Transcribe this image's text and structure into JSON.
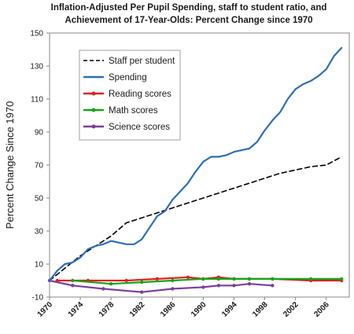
{
  "chart_data": {
    "type": "line",
    "title": "Inflation-Adjusted Per Pupil Spending, staff to student ratio, and",
    "subtitle": "Achievement of 17-Year-Olds:  Percent Change since 1970",
    "xlabel": "",
    "ylabel": "Percent Change Since 1970",
    "xlim": [
      1970,
      2009
    ],
    "ylim": [
      -10,
      150
    ],
    "y_ticks": [
      -10,
      10,
      30,
      50,
      70,
      90,
      110,
      130,
      150
    ],
    "x_ticks": [
      1970,
      1974,
      1978,
      1982,
      1986,
      1990,
      1994,
      1998,
      2002,
      2006
    ],
    "grid": false,
    "legend_position": "top-left",
    "series": [
      {
        "name": "Staff per student",
        "color": "#000000",
        "style": "dashed",
        "points": [
          [
            1970,
            0
          ],
          [
            1974,
            15
          ],
          [
            1978,
            27
          ],
          [
            1980,
            35
          ],
          [
            1982,
            38
          ],
          [
            1984,
            41
          ],
          [
            1986,
            44
          ],
          [
            1988,
            47
          ],
          [
            1990,
            50
          ],
          [
            1992,
            53
          ],
          [
            1994,
            56
          ],
          [
            1996,
            59
          ],
          [
            1998,
            62
          ],
          [
            2000,
            65
          ],
          [
            2002,
            67
          ],
          [
            2004,
            69
          ],
          [
            2006,
            70
          ],
          [
            2008,
            75
          ]
        ]
      },
      {
        "name": "Spending",
        "color": "#2e6eb5",
        "style": "solid",
        "points": [
          [
            1970,
            0
          ],
          [
            1971,
            6
          ],
          [
            1972,
            10
          ],
          [
            1973,
            11
          ],
          [
            1974,
            14
          ],
          [
            1975,
            19
          ],
          [
            1976,
            21
          ],
          [
            1977,
            22
          ],
          [
            1978,
            24
          ],
          [
            1979,
            23
          ],
          [
            1980,
            22
          ],
          [
            1981,
            22
          ],
          [
            1982,
            25
          ],
          [
            1983,
            32
          ],
          [
            1984,
            39
          ],
          [
            1985,
            42
          ],
          [
            1986,
            49
          ],
          [
            1987,
            54
          ],
          [
            1988,
            59
          ],
          [
            1989,
            66
          ],
          [
            1990,
            72
          ],
          [
            1991,
            75
          ],
          [
            1992,
            75
          ],
          [
            1993,
            76
          ],
          [
            1994,
            78
          ],
          [
            1995,
            79
          ],
          [
            1996,
            80
          ],
          [
            1997,
            84
          ],
          [
            1998,
            91
          ],
          [
            1999,
            97
          ],
          [
            2000,
            102
          ],
          [
            2001,
            110
          ],
          [
            2002,
            116
          ],
          [
            2003,
            119
          ],
          [
            2004,
            121
          ],
          [
            2005,
            124
          ],
          [
            2006,
            128
          ],
          [
            2007,
            136
          ],
          [
            2008,
            141
          ]
        ]
      },
      {
        "name": "Reading scores",
        "color": "#e02020",
        "style": "solid",
        "points": [
          [
            1971,
            0
          ],
          [
            1975,
            0
          ],
          [
            1980,
            0
          ],
          [
            1984,
            1
          ],
          [
            1988,
            2
          ],
          [
            1990,
            1
          ],
          [
            1992,
            2
          ],
          [
            1994,
            1
          ],
          [
            1996,
            1
          ],
          [
            1999,
            1
          ],
          [
            2004,
            0
          ],
          [
            2008,
            0
          ]
        ]
      },
      {
        "name": "Math scores",
        "color": "#18a418",
        "style": "solid",
        "points": [
          [
            1973,
            0
          ],
          [
            1978,
            -2
          ],
          [
            1982,
            -1
          ],
          [
            1986,
            0
          ],
          [
            1990,
            1
          ],
          [
            1992,
            1
          ],
          [
            1994,
            1
          ],
          [
            1996,
            1
          ],
          [
            1999,
            1
          ],
          [
            2004,
            1
          ],
          [
            2008,
            1
          ]
        ]
      },
      {
        "name": "Science scores",
        "color": "#7b3f9a",
        "style": "solid",
        "points": [
          [
            1970,
            0
          ],
          [
            1973,
            -3
          ],
          [
            1977,
            -5
          ],
          [
            1982,
            -7
          ],
          [
            1986,
            -5
          ],
          [
            1990,
            -4
          ],
          [
            1992,
            -3
          ],
          [
            1994,
            -3
          ],
          [
            1996,
            -2
          ],
          [
            1999,
            -3
          ]
        ]
      }
    ]
  }
}
